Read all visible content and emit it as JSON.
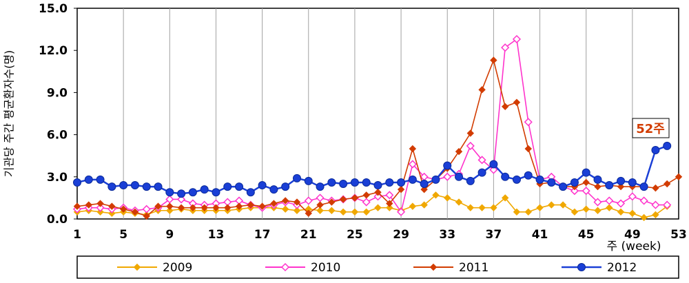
{
  "chart_data": {
    "type": "line",
    "xlabel": "주 (week)",
    "ylabel": "기관당 주간 평균환자수(명)",
    "ylim": [
      0,
      15
    ],
    "xlim": [
      1,
      53
    ],
    "yticks": [
      "0.0",
      "3.0",
      "6.0",
      "9.0",
      "12.0",
      "15.0"
    ],
    "xticks": [
      "1",
      "5",
      "9",
      "13",
      "17",
      "21",
      "25",
      "29",
      "33",
      "37",
      "41",
      "45",
      "49",
      "53"
    ],
    "grid": "vertical",
    "legend_position": "bottom",
    "annotation": "52주",
    "annotation_color": "#d23c00",
    "series": [
      {
        "name": "2009",
        "color": "#f0a800",
        "marker": "diamond",
        "x": [
          1,
          2,
          3,
          4,
          5,
          6,
          7,
          8,
          9,
          10,
          11,
          12,
          13,
          14,
          15,
          16,
          17,
          18,
          19,
          20,
          21,
          22,
          23,
          24,
          25,
          26,
          27,
          28,
          29,
          30,
          31,
          32,
          33,
          34,
          35,
          36,
          37,
          38,
          39,
          40,
          41,
          42,
          43,
          44,
          45,
          46,
          47,
          48,
          49,
          50,
          51,
          52
        ],
        "values": [
          0.5,
          0.6,
          0.5,
          0.4,
          0.5,
          0.4,
          0.3,
          0.6,
          0.6,
          0.7,
          0.6,
          0.6,
          0.6,
          0.6,
          0.7,
          0.8,
          0.8,
          0.8,
          0.7,
          0.6,
          0.7,
          0.6,
          0.6,
          0.5,
          0.5,
          0.5,
          0.8,
          0.8,
          0.6,
          0.9,
          1.0,
          1.7,
          1.5,
          1.2,
          0.8,
          0.8,
          0.8,
          1.5,
          0.5,
          0.5,
          0.8,
          1.0,
          1.0,
          0.5,
          0.7,
          0.6,
          0.8,
          0.5,
          0.4,
          0.1,
          0.3,
          0.9
        ]
      },
      {
        "name": "2010",
        "color": "#ff33cc",
        "marker": "diamond-open",
        "x": [
          1,
          2,
          3,
          4,
          5,
          6,
          7,
          8,
          9,
          10,
          11,
          12,
          13,
          14,
          15,
          16,
          17,
          18,
          19,
          20,
          21,
          22,
          23,
          24,
          25,
          26,
          27,
          28,
          29,
          30,
          31,
          32,
          33,
          34,
          35,
          36,
          37,
          38,
          39,
          40,
          41,
          42,
          43,
          44,
          45,
          46,
          47,
          48,
          49,
          50,
          51,
          52
        ],
        "values": [
          0.7,
          0.8,
          0.8,
          0.7,
          0.8,
          0.6,
          0.7,
          0.8,
          1.4,
          1.4,
          1.1,
          1.0,
          1.1,
          1.2,
          1.3,
          1.0,
          0.8,
          1.0,
          1.2,
          1.0,
          1.3,
          1.5,
          1.3,
          1.4,
          1.5,
          1.2,
          1.6,
          1.7,
          0.5,
          3.9,
          3.0,
          2.8,
          3.0,
          3.2,
          5.2,
          4.2,
          3.5,
          12.2,
          12.8,
          6.9,
          2.8,
          3.0,
          2.3,
          2.0,
          2.0,
          1.2,
          1.3,
          1.1,
          1.6,
          1.3,
          1.0,
          1.0
        ]
      },
      {
        "name": "2011",
        "color": "#d23c00",
        "marker": "diamond",
        "x": [
          1,
          2,
          3,
          4,
          5,
          6,
          7,
          8,
          9,
          10,
          11,
          12,
          13,
          14,
          15,
          16,
          17,
          18,
          19,
          20,
          21,
          22,
          23,
          24,
          25,
          26,
          27,
          28,
          29,
          30,
          31,
          32,
          33,
          34,
          35,
          36,
          37,
          38,
          39,
          40,
          41,
          42,
          43,
          44,
          45,
          46,
          47,
          48,
          49,
          50,
          51,
          52,
          53
        ],
        "values": [
          0.9,
          1.0,
          1.1,
          0.9,
          0.7,
          0.5,
          0.2,
          0.9,
          0.9,
          0.8,
          0.8,
          0.8,
          0.8,
          0.8,
          0.9,
          1.0,
          0.9,
          1.1,
          1.3,
          1.2,
          0.4,
          1.0,
          1.2,
          1.4,
          1.5,
          1.7,
          1.9,
          1.1,
          2.1,
          5.0,
          2.1,
          2.8,
          3.6,
          4.8,
          6.1,
          9.2,
          11.3,
          8.0,
          8.3,
          5.0,
          2.5,
          2.6,
          2.3,
          2.3,
          2.6,
          2.3,
          2.4,
          2.3,
          2.3,
          2.3,
          2.2,
          2.5,
          3.0
        ]
      },
      {
        "name": "2012",
        "color": "#1a3fd6",
        "marker": "circle",
        "x": [
          1,
          2,
          3,
          4,
          5,
          6,
          7,
          8,
          9,
          10,
          11,
          12,
          13,
          14,
          15,
          16,
          17,
          18,
          19,
          20,
          21,
          22,
          23,
          24,
          25,
          26,
          27,
          28,
          29,
          30,
          31,
          32,
          33,
          34,
          35,
          36,
          37,
          38,
          39,
          40,
          41,
          42,
          43,
          44,
          45,
          46,
          47,
          48,
          49,
          50,
          51,
          52
        ],
        "values": [
          2.6,
          2.8,
          2.8,
          2.3,
          2.4,
          2.4,
          2.3,
          2.3,
          1.9,
          1.8,
          1.9,
          2.1,
          1.9,
          2.3,
          2.3,
          1.9,
          2.4,
          2.1,
          2.3,
          2.9,
          2.7,
          2.3,
          2.6,
          2.5,
          2.6,
          2.6,
          2.4,
          2.6,
          2.6,
          2.8,
          2.5,
          2.8,
          3.8,
          3.0,
          2.7,
          3.3,
          3.9,
          3.0,
          2.8,
          3.1,
          2.8,
          2.6,
          2.3,
          2.6,
          3.3,
          2.8,
          2.4,
          2.7,
          2.6,
          2.3,
          4.9,
          5.2
        ]
      }
    ]
  }
}
